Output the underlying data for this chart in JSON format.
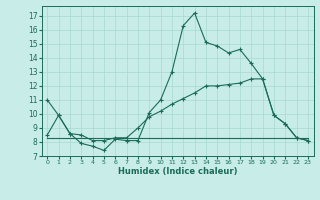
{
  "background_color": "#c8ece8",
  "grid_color": "#a8d8d0",
  "line_color": "#1a6b5a",
  "xlabel": "Humidex (Indice chaleur)",
  "xlim": [
    -0.5,
    23.5
  ],
  "ylim": [
    7,
    17.7
  ],
  "xticks": [
    0,
    1,
    2,
    3,
    4,
    5,
    6,
    7,
    8,
    9,
    10,
    11,
    12,
    13,
    14,
    15,
    16,
    17,
    18,
    19,
    20,
    21,
    22,
    23
  ],
  "yticks": [
    7,
    8,
    9,
    10,
    11,
    12,
    13,
    14,
    15,
    16,
    17
  ],
  "line1_x": [
    0,
    1,
    2,
    3,
    4,
    5,
    6,
    7,
    8,
    9,
    10,
    11,
    12,
    13,
    14,
    15,
    16,
    17,
    18,
    19,
    20,
    21,
    22,
    23
  ],
  "line1_y": [
    11.0,
    9.9,
    8.6,
    7.9,
    7.7,
    7.4,
    8.2,
    8.1,
    8.1,
    10.1,
    11.0,
    13.0,
    16.3,
    17.2,
    15.1,
    14.85,
    14.35,
    14.6,
    13.6,
    12.5,
    9.9,
    9.3,
    8.3,
    8.1
  ],
  "line2_x": [
    0,
    1,
    2,
    3,
    4,
    5,
    6,
    7,
    8,
    9,
    10,
    11,
    12,
    13,
    14,
    15,
    16,
    17,
    18,
    19,
    20,
    21,
    22,
    23
  ],
  "line2_y": [
    8.5,
    9.9,
    8.6,
    8.5,
    8.1,
    8.1,
    8.3,
    8.3,
    9.0,
    9.8,
    10.2,
    10.7,
    11.1,
    11.5,
    12.0,
    12.0,
    12.1,
    12.2,
    12.5,
    12.5,
    9.9,
    9.3,
    8.3,
    8.1
  ],
  "line3_x": [
    0,
    1,
    2,
    3,
    4,
    5,
    6,
    7,
    8,
    9,
    10,
    11,
    12,
    13,
    14,
    15,
    16,
    17,
    18,
    19,
    20,
    21,
    22,
    23
  ],
  "line3_y": [
    8.3,
    8.3,
    8.3,
    8.3,
    8.3,
    8.3,
    8.3,
    8.3,
    8.3,
    8.3,
    8.3,
    8.3,
    8.3,
    8.3,
    8.3,
    8.3,
    8.3,
    8.3,
    8.3,
    8.3,
    8.3,
    8.3,
    8.3,
    8.3
  ]
}
